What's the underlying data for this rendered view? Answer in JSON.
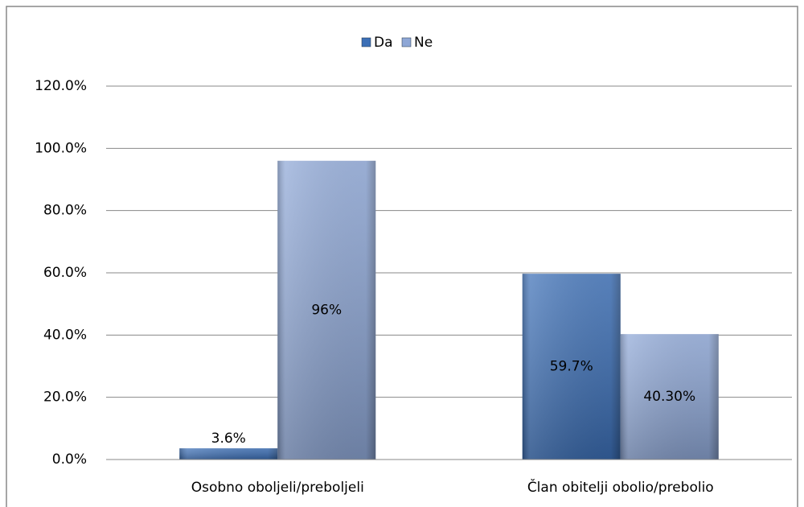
{
  "chart_data": {
    "type": "bar",
    "categories": [
      "Osobno oboljeli/preboljeli",
      "Član obitelji obolio/prebolio"
    ],
    "series": [
      {
        "name": "Da",
        "color": "#3c6fb6",
        "values": [
          3.6,
          59.7
        ],
        "value_labels": [
          "3.6%",
          "59.7%"
        ]
      },
      {
        "name": "Ne",
        "color": "#8ea7d6",
        "values": [
          96,
          40.3
        ],
        "value_labels": [
          "96%",
          "40.30%"
        ]
      }
    ],
    "ylim": [
      0,
      120
    ],
    "yticks": [
      {
        "value": 0,
        "label": "0.0%"
      },
      {
        "value": 20,
        "label": "20.0%"
      },
      {
        "value": 40,
        "label": "40.0%"
      },
      {
        "value": 60,
        "label": "60.0%"
      },
      {
        "value": 80,
        "label": "80.0%"
      },
      {
        "value": 100,
        "label": "100.0%"
      },
      {
        "value": 120,
        "label": "120.0%"
      }
    ],
    "grid": true,
    "legend": "top"
  }
}
